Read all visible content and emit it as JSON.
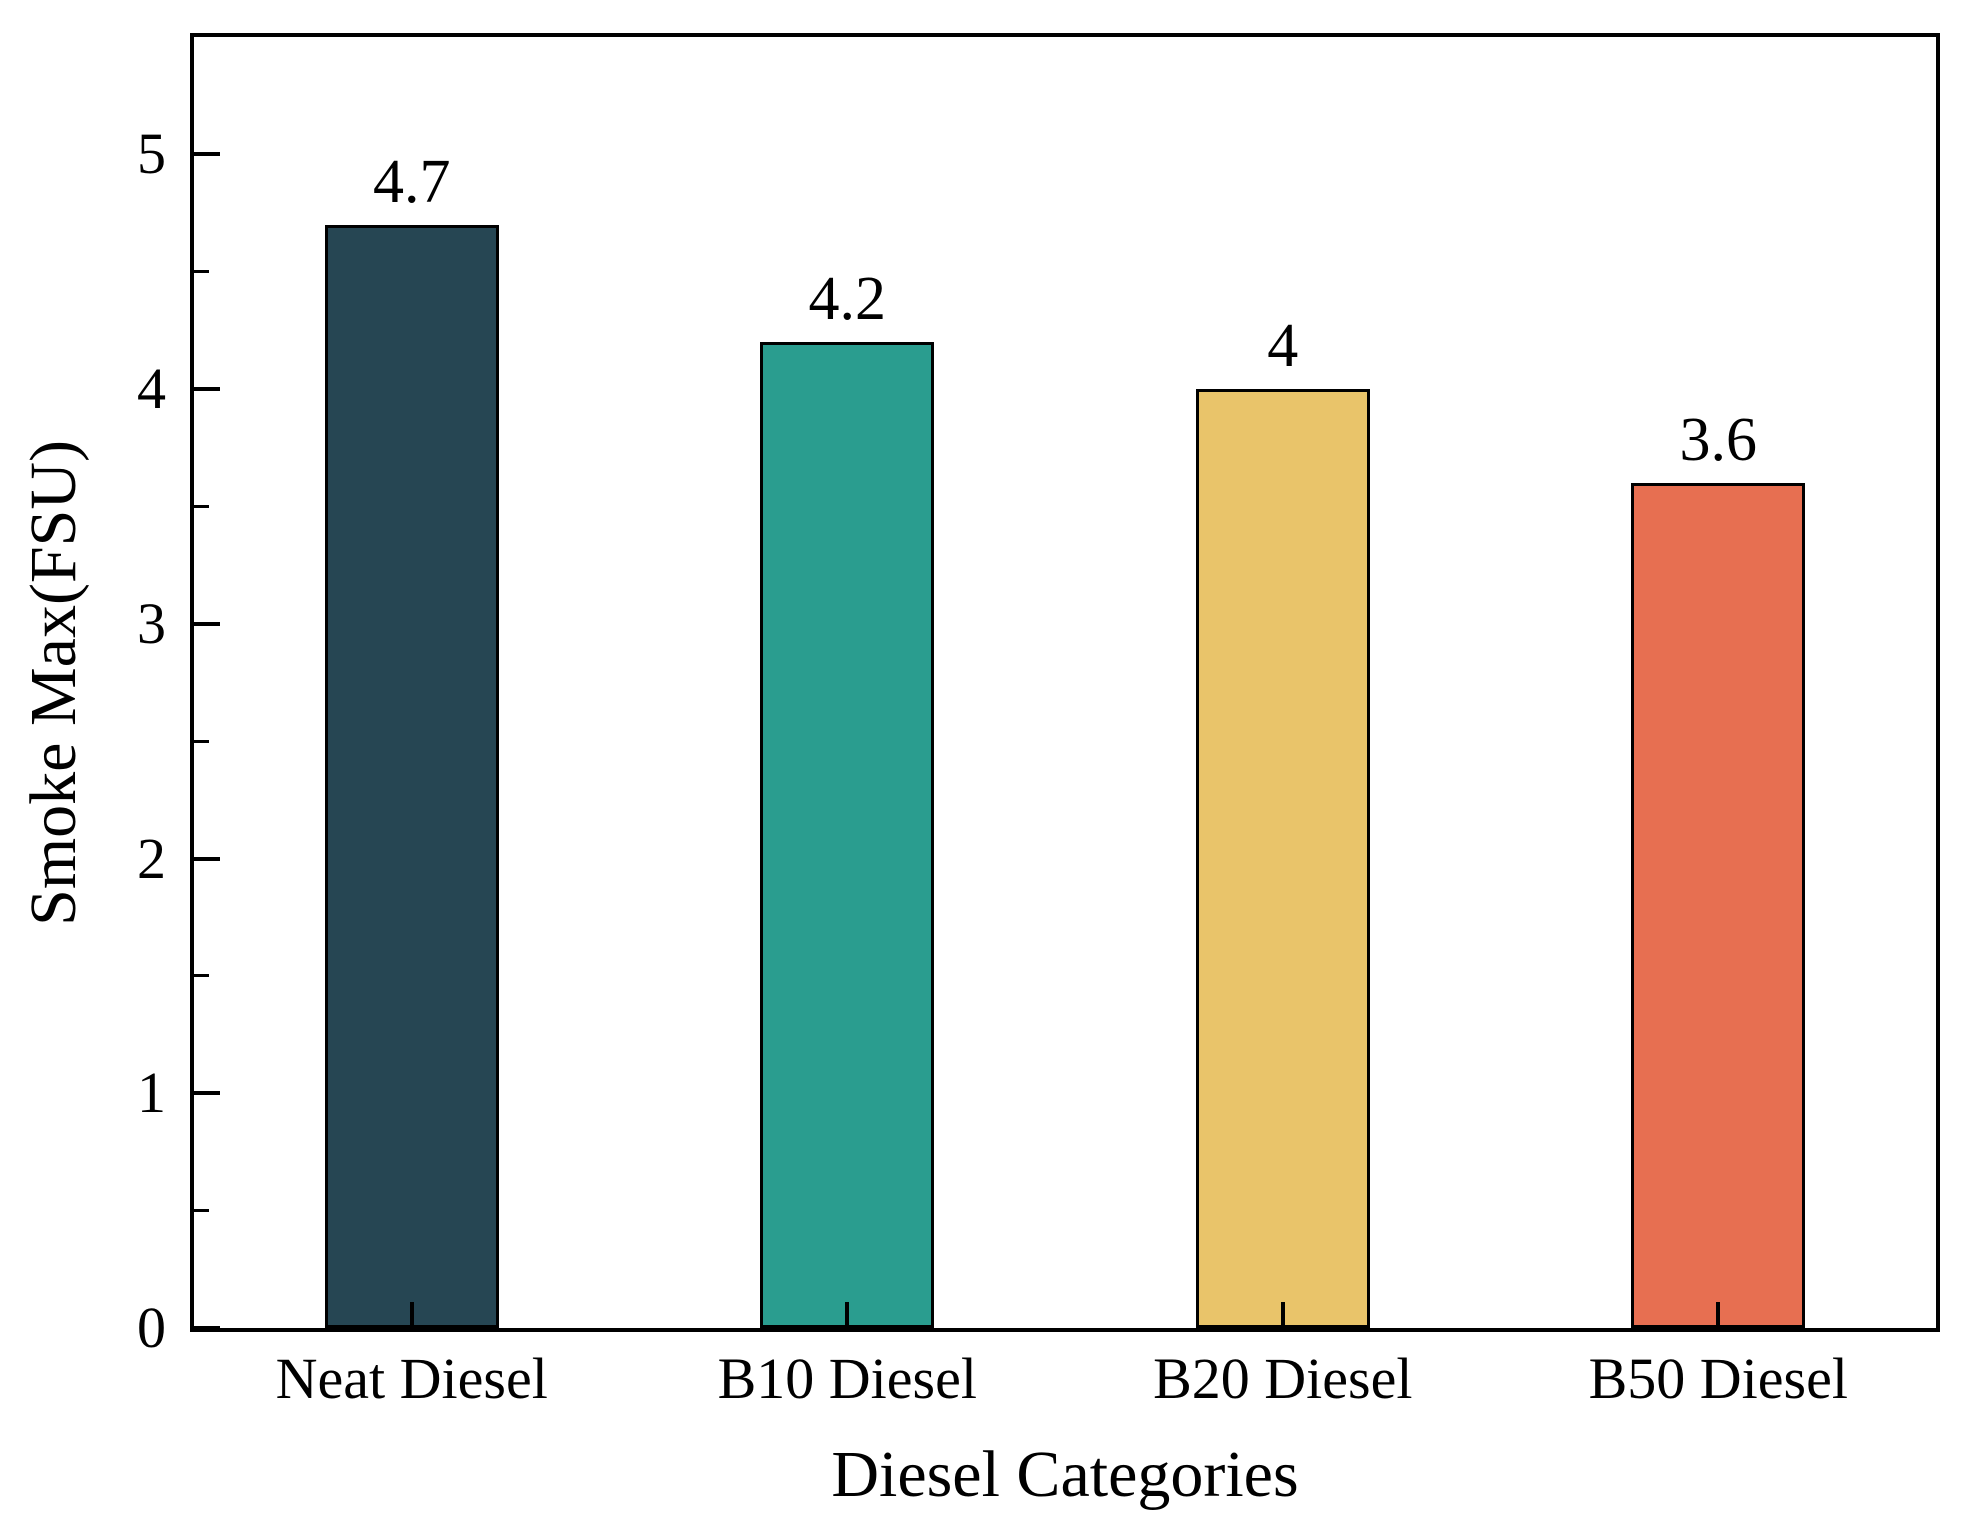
{
  "chart_data": {
    "type": "bar",
    "xlabel": "Diesel Categories",
    "ylabel": "Smoke Max(FSU)",
    "categories": [
      "Neat Diesel",
      "B10 Diesel",
      "B20 Diesel",
      "B50 Diesel"
    ],
    "values": [
      4.7,
      4.2,
      4,
      3.6
    ],
    "value_labels": [
      "4.7",
      "4.2",
      "4",
      "3.6"
    ],
    "bar_colors": [
      "#264653",
      "#2A9D8F",
      "#E9C46A",
      "#E76F51"
    ],
    "bar_edge_color": "#000000",
    "axis_color": "#000000",
    "text_color": "#000000",
    "background_color": "#FFFFFF",
    "ylim": [
      0,
      5.5
    ],
    "yticks": [
      0,
      1,
      2,
      3,
      4,
      5
    ],
    "ytick_labels": [
      "0",
      "1",
      "2",
      "3",
      "4",
      "5"
    ],
    "minor_ytick_positions": [
      0.5,
      1.5,
      2.5,
      3.5,
      4.5
    ],
    "tick_direction": "in",
    "grid": false,
    "legend": "none",
    "bar_label_position": "above"
  }
}
